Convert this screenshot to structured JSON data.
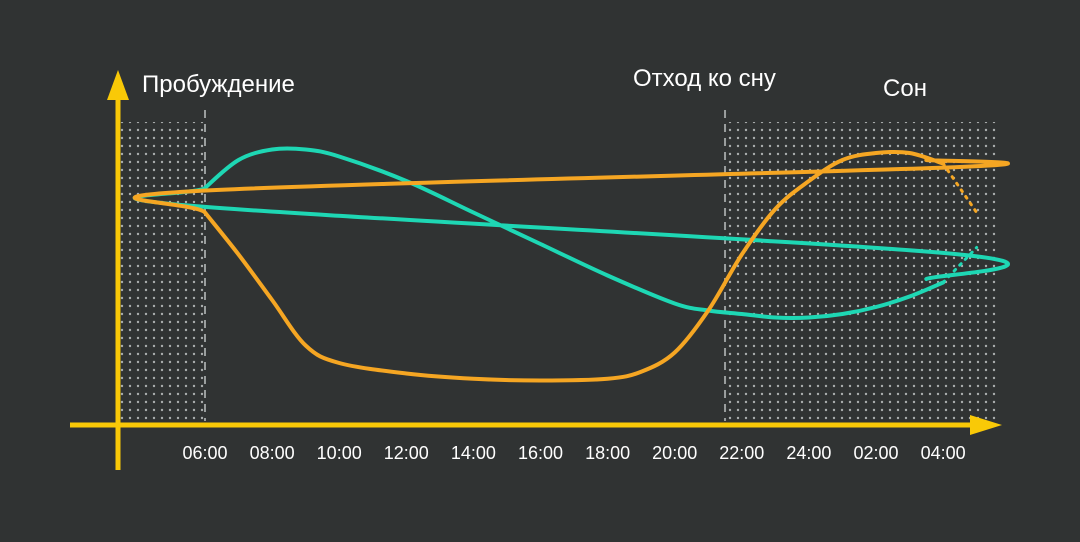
{
  "chart_data": {
    "type": "line",
    "title": "",
    "xlabel": "",
    "ylabel": "",
    "x_ticks": [
      "06:00",
      "08:00",
      "10:00",
      "12:00",
      "14:00",
      "16:00",
      "18:00",
      "20:00",
      "22:00",
      "24:00",
      "02:00",
      "04:00"
    ],
    "phases": [
      {
        "label": "Пробуждение",
        "shaded": true
      },
      {
        "label": "Отход ко сну",
        "shaded": false
      },
      {
        "label": "Сон",
        "shaded": true
      }
    ],
    "series": [
      {
        "color": "#1ed7b4",
        "x": [
          "03:30",
          "04:30",
          "05:30",
          "06:00",
          "07:00",
          "08:00",
          "09:00",
          "10:00",
          "12:00",
          "14:00",
          "16:00",
          "18:00",
          "20:00",
          "21:00",
          "22:00",
          "23:00",
          "24:00",
          "01:00",
          "02:00",
          "03:00",
          "04:00",
          "05:00"
        ],
        "values": [
          3.6,
          4.3,
          5.7,
          6.2,
          7.0,
          7.3,
          7.3,
          7.1,
          6.4,
          5.5,
          4.6,
          3.7,
          2.9,
          2.7,
          2.6,
          2.5,
          2.5,
          2.6,
          2.8,
          3.1,
          3.5,
          4.5
        ]
      },
      {
        "color": "#f5a623",
        "x": [
          "03:30",
          "04:30",
          "05:30",
          "06:00",
          "07:00",
          "08:00",
          "09:00",
          "10:00",
          "12:00",
          "14:00",
          "16:00",
          "18:00",
          "19:00",
          "20:00",
          "21:00",
          "22:00",
          "23:00",
          "24:00",
          "01:00",
          "02:00",
          "03:00",
          "04:00",
          "05:00"
        ],
        "values": [
          7.0,
          6.8,
          6.1,
          5.5,
          4.3,
          3.0,
          1.7,
          1.2,
          0.9,
          0.75,
          0.7,
          0.75,
          0.95,
          1.5,
          2.7,
          4.3,
          5.6,
          6.4,
          7.0,
          7.2,
          7.2,
          6.9,
          5.5
        ]
      }
    ],
    "axis_color": "#f9c907",
    "grid": false
  }
}
